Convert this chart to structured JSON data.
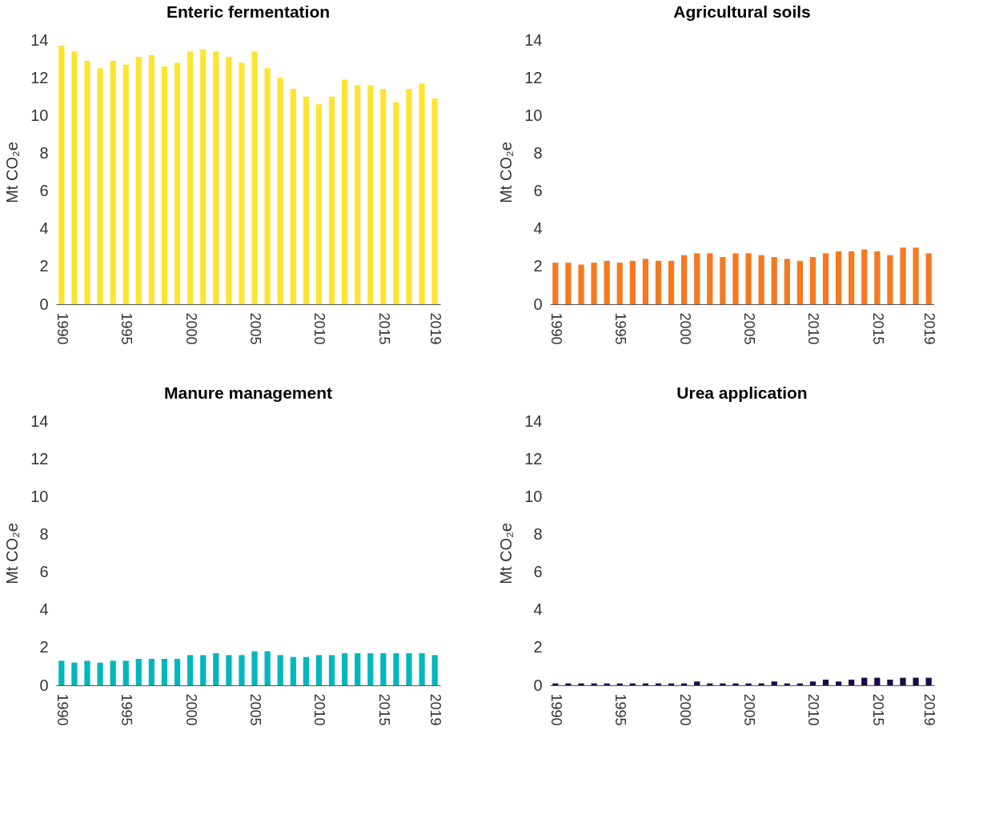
{
  "chart_data": [
    {
      "type": "bar",
      "title": "Enteric fermentation",
      "ylabel": "Mt CO₂e",
      "color": "#fde432",
      "categories": [
        "1990",
        null,
        null,
        null,
        null,
        "1995",
        null,
        null,
        null,
        null,
        "2000",
        null,
        null,
        null,
        null,
        "2005",
        null,
        null,
        null,
        null,
        "2010",
        null,
        null,
        null,
        null,
        "2015",
        null,
        null,
        null,
        "2019"
      ],
      "values": [
        13.7,
        13.4,
        12.9,
        12.5,
        12.9,
        12.7,
        13.1,
        13.2,
        12.6,
        12.8,
        13.4,
        13.5,
        13.4,
        13.1,
        12.8,
        13.4,
        12.5,
        12.0,
        11.4,
        11.0,
        10.6,
        11.0,
        11.9,
        11.6,
        11.6,
        11.4,
        10.7,
        11.4,
        11.7,
        10.9
      ],
      "ylim": [
        0,
        14
      ],
      "yticks": [
        0,
        2,
        4,
        6,
        8,
        10,
        12,
        14
      ],
      "grid": false
    },
    {
      "type": "bar",
      "title": "Agricultural soils",
      "ylabel": "Mt CO₂e",
      "color": "#f47920",
      "categories": [
        "1990",
        null,
        null,
        null,
        null,
        "1995",
        null,
        null,
        null,
        null,
        "2000",
        null,
        null,
        null,
        null,
        "2005",
        null,
        null,
        null,
        null,
        "2010",
        null,
        null,
        null,
        null,
        "2015",
        null,
        null,
        null,
        "2019"
      ],
      "values": [
        2.2,
        2.2,
        2.1,
        2.2,
        2.3,
        2.2,
        2.3,
        2.4,
        2.3,
        2.3,
        2.6,
        2.7,
        2.7,
        2.5,
        2.7,
        2.7,
        2.6,
        2.5,
        2.4,
        2.3,
        2.5,
        2.7,
        2.8,
        2.8,
        2.9,
        2.8,
        2.6,
        3.0,
        3.0,
        2.7
      ],
      "ylim": [
        0,
        14
      ],
      "yticks": [
        0,
        2,
        4,
        6,
        8,
        10,
        12,
        14
      ],
      "grid": false
    },
    {
      "type": "bar",
      "title": "Manure management",
      "ylabel": "Mt CO₂e",
      "color": "#00b7bd",
      "categories": [
        "1990",
        null,
        null,
        null,
        null,
        "1995",
        null,
        null,
        null,
        null,
        "2000",
        null,
        null,
        null,
        null,
        "2005",
        null,
        null,
        null,
        null,
        "2010",
        null,
        null,
        null,
        null,
        "2015",
        null,
        null,
        null,
        "2019"
      ],
      "values": [
        1.3,
        1.2,
        1.3,
        1.2,
        1.3,
        1.3,
        1.4,
        1.4,
        1.4,
        1.4,
        1.6,
        1.6,
        1.7,
        1.6,
        1.6,
        1.8,
        1.8,
        1.6,
        1.5,
        1.5,
        1.6,
        1.6,
        1.7,
        1.7,
        1.7,
        1.7,
        1.7,
        1.7,
        1.7,
        1.6
      ],
      "ylim": [
        0,
        14
      ],
      "yticks": [
        0,
        2,
        4,
        6,
        8,
        10,
        12,
        14
      ],
      "grid": false
    },
    {
      "type": "bar",
      "title": "Urea application",
      "ylabel": "Mt CO₂e",
      "color": "#1a0a4a",
      "categories": [
        "1990",
        null,
        null,
        null,
        null,
        "1995",
        null,
        null,
        null,
        null,
        "2000",
        null,
        null,
        null,
        null,
        "2005",
        null,
        null,
        null,
        null,
        "2010",
        null,
        null,
        null,
        null,
        "2015",
        null,
        null,
        null,
        "2019"
      ],
      "values": [
        0.1,
        0.1,
        0.1,
        0.1,
        0.1,
        0.1,
        0.1,
        0.1,
        0.1,
        0.1,
        0.1,
        0.2,
        0.1,
        0.1,
        0.1,
        0.1,
        0.1,
        0.2,
        0.1,
        0.1,
        0.2,
        0.3,
        0.2,
        0.3,
        0.4,
        0.4,
        0.3,
        0.4,
        0.4,
        0.4
      ],
      "ylim": [
        0,
        14
      ],
      "yticks": [
        0,
        2,
        4,
        6,
        8,
        10,
        12,
        14
      ],
      "grid": false
    }
  ]
}
